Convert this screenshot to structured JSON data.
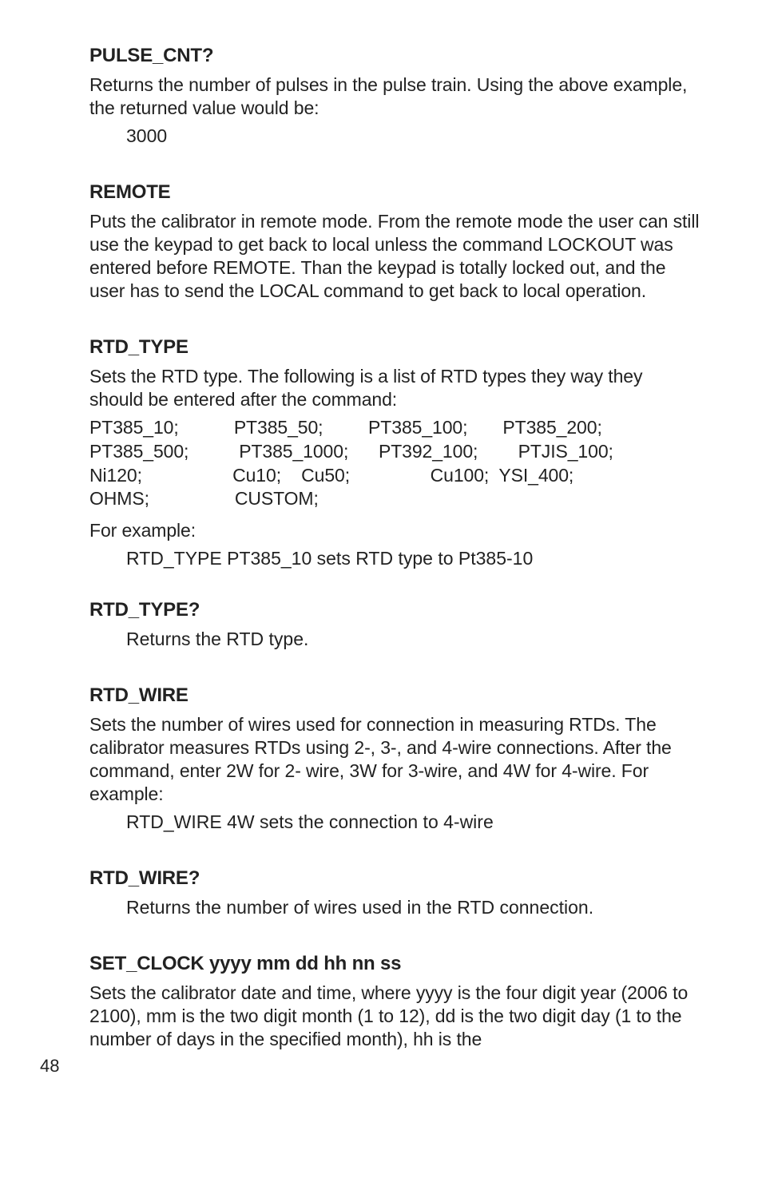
{
  "colors": {
    "text": "#222222",
    "bg": "#ffffff"
  },
  "typography": {
    "body_pt": 23,
    "heading_pt": 24,
    "heading_weight": 700,
    "family": "Helvetica"
  },
  "sections": {
    "pulse_cnt_q": {
      "heading": "PULSE_CNT?",
      "body": "Returns the number of pulses in the pulse train. Using the above example, the returned value would be:",
      "code": "3000"
    },
    "remote": {
      "heading": "REMOTE",
      "body": "Puts the calibrator in remote mode. From the remote mode the user can still use the keypad to get back to local unless the command LOCKOUT was entered before REMOTE. Than the keypad is totally locked out, and the user has to send the LOCAL command to get back to local operation."
    },
    "rtd_type": {
      "heading": "RTD_TYPE",
      "intro": "Sets the RTD type. The following is a list of RTD types they way they should be entered after the command:",
      "row1": "PT385_10;           PT385_50;         PT385_100;       PT385_200;",
      "row2": "PT385_500;          PT385_1000;      PT392_100;        PTJIS_100;",
      "row3": "Ni120;                  Cu10;    Cu50;                Cu100;  YSI_400;",
      "row4": "OHMS;                 CUSTOM;",
      "example_label": "For example:",
      "example_code": "RTD_TYPE PT385_10 sets RTD type to Pt385-10"
    },
    "rtd_type_q": {
      "heading": "RTD_TYPE?",
      "code": "Returns the RTD type."
    },
    "rtd_wire": {
      "heading": "RTD_WIRE",
      "body": "Sets the number of wires used for connection in measuring RTDs. The calibrator measures RTDs using 2-, 3-, and 4-wire connections. After the command, enter 2W for 2- wire, 3W for 3-wire, and 4W for 4-wire. For example:",
      "code": "RTD_WIRE 4W sets the connection to 4-wire"
    },
    "rtd_wire_q": {
      "heading": "RTD_WIRE?",
      "code": "Returns the number of wires used in the RTD connection."
    },
    "set_clock": {
      "heading": "SET_CLOCK yyyy mm dd hh nn ss",
      "body": "Sets the calibrator date and time, where yyyy is the four digit year (2006 to 2100), mm is the two digit month (1 to 12), dd is the two digit day (1 to the number of days in the specified month), hh is the"
    }
  },
  "page_number": "48"
}
